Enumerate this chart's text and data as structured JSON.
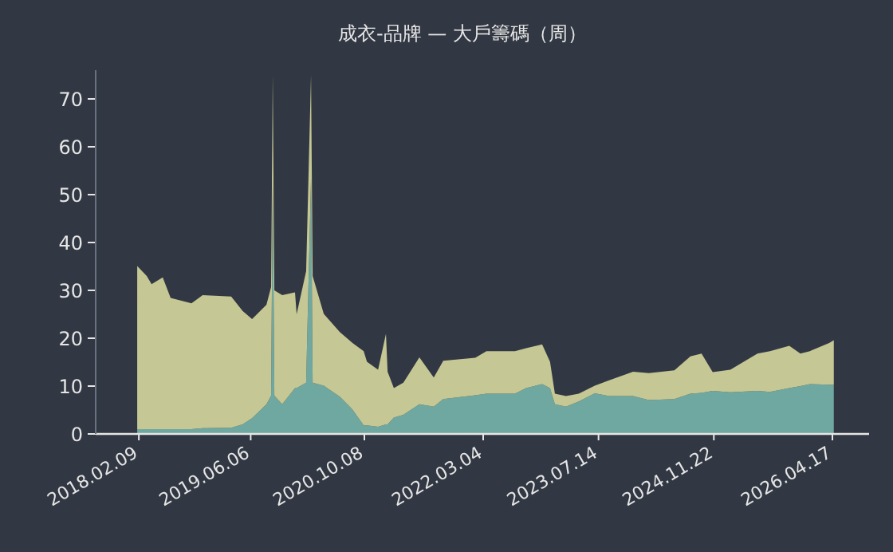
{
  "chart_data": {
    "type": "area",
    "title": "成衣-品牌 — 大戶籌碼（周）",
    "stacked": true,
    "x": [
      "2018-02-02",
      "2018-03-15",
      "2018-04-05",
      "2018-05-23",
      "2018-06-26",
      "2018-09-24",
      "2018-11-11",
      "2019-03-14",
      "2019-05-02",
      "2019-06-12",
      "2019-08-13",
      "2019-09-02",
      "2019-09-09",
      "2019-09-16",
      "2019-10-20",
      "2019-12-14",
      "2019-12-21",
      "2020-01-31",
      "2020-02-21",
      "2020-02-28",
      "2020-04-16",
      "2020-06-24",
      "2020-08-18",
      "2020-10-05",
      "2020-10-19",
      "2020-12-06",
      "2021-01-09",
      "2021-01-16",
      "2021-02-12",
      "2021-03-25",
      "2021-06-02",
      "2021-08-03",
      "2021-09-13",
      "2022-01-29",
      "2022-03-18",
      "2022-07-19",
      "2022-09-05",
      "2022-11-13",
      "2022-12-17",
      "2023-01-07",
      "2023-02-24",
      "2023-04-20",
      "2023-06-28",
      "2023-08-29",
      "2023-12-10",
      "2024-02-16",
      "2024-06-05",
      "2024-08-13",
      "2024-09-30",
      "2024-11-17",
      "2025-02-01",
      "2025-05-29",
      "2025-07-22",
      "2025-10-13",
      "2025-11-30",
      "2026-01-10",
      "2026-04-03",
      "2026-04-23"
    ],
    "series": [
      {
        "color": "#6fa8a0",
        "values": [
          1,
          1,
          1,
          1,
          1,
          1,
          1.2,
          1.3,
          2,
          3.3,
          6.2,
          8,
          53.4,
          8,
          6.2,
          9.6,
          9.6,
          10.7,
          53.4,
          10.7,
          10.1,
          7.8,
          5.1,
          1.8,
          1.8,
          1.5,
          2,
          2,
          3.4,
          4,
          6.2,
          5.7,
          7.3,
          8.1,
          8.4,
          8.4,
          9.6,
          10.4,
          9.6,
          6.2,
          5.7,
          6.8,
          8.5,
          7.9,
          7.9,
          7.1,
          7.3,
          8.4,
          8.6,
          9,
          8.7,
          9,
          8.8,
          9.6,
          10,
          10.4,
          10.3,
          10.3
        ]
      },
      {
        "color": "#c5c894",
        "values": [
          34.1,
          32,
          30.3,
          31.7,
          27.4,
          26.3,
          27.8,
          27.4,
          23.7,
          20.7,
          20.8,
          22.7,
          21.6,
          22,
          22.8,
          20,
          15.4,
          23.3,
          21.6,
          22.3,
          15,
          13.5,
          13.9,
          15.5,
          13.3,
          11.9,
          18.9,
          11,
          6.2,
          6.7,
          9.8,
          6.1,
          8,
          7.8,
          8.9,
          8.9,
          8.3,
          8.3,
          5.5,
          2.2,
          2.2,
          1.6,
          1.6,
          3.3,
          5.1,
          5.6,
          6,
          7.8,
          8.2,
          3.9,
          4.7,
          7.8,
          8.5,
          8.8,
          6.8,
          6.9,
          8.7,
          9.3
        ]
      }
    ],
    "xlim": [
      "2017-08-07",
      "2026-09-22"
    ],
    "xticks": [
      {
        "value": "2018-02-09",
        "label": "2018.02.09"
      },
      {
        "value": "2019-06-06",
        "label": "2019.06.06"
      },
      {
        "value": "2020-10-08",
        "label": "2020.10.08"
      },
      {
        "value": "2022-03-04",
        "label": "2022.03.04"
      },
      {
        "value": "2023-07-14",
        "label": "2023.07.14"
      },
      {
        "value": "2024-11-22",
        "label": "2024.11.22"
      },
      {
        "value": "2026-04-17",
        "label": "2026.04.17"
      }
    ],
    "ylim": [
      0,
      76
    ],
    "yticks": [
      0,
      10,
      20,
      30,
      40,
      50,
      60,
      70
    ]
  }
}
